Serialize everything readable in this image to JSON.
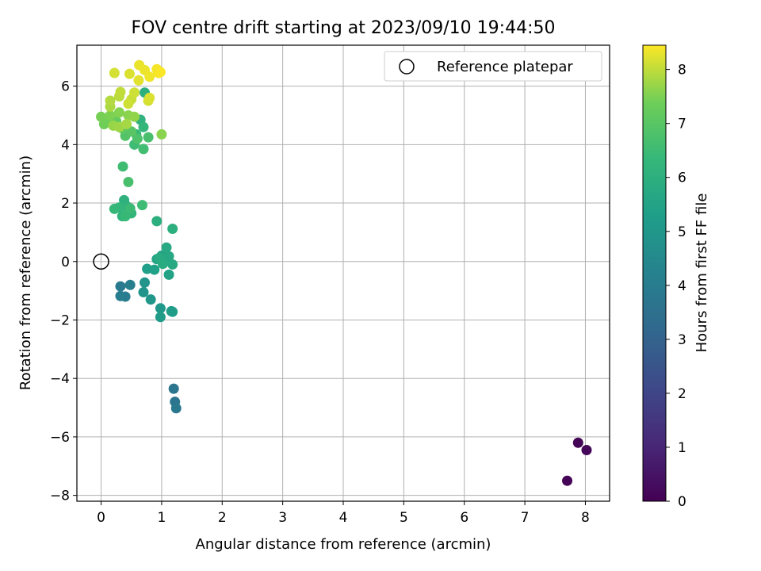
{
  "chart_data": {
    "type": "scatter",
    "title": "FOV centre drift starting at 2023/09/10 19:44:50",
    "xlabel": "Angular distance from reference (arcmin)",
    "ylabel": "Rotation from reference (arcmin)",
    "xlim": [
      -0.4,
      8.4
    ],
    "ylim": [
      -8.2,
      7.4
    ],
    "xticks": [
      "0",
      "1",
      "2",
      "3",
      "4",
      "5",
      "6",
      "7",
      "8"
    ],
    "yticks": [
      "−8",
      "−6",
      "−4",
      "−2",
      "0",
      "2",
      "4",
      "6"
    ],
    "grid": true,
    "legend": {
      "placement": "top-right",
      "entries": [
        "Reference platepar"
      ]
    },
    "colorbar": {
      "label": "Hours from first FF file",
      "range": [
        0,
        8.45
      ],
      "ticks": [
        "0",
        "1",
        "2",
        "3",
        "4",
        "5",
        "6",
        "7",
        "8"
      ],
      "colormap": "viridis"
    },
    "reference": {
      "x": 0,
      "y": 0
    },
    "points": [
      [
        7.7,
        -7.5,
        0.05
      ],
      [
        7.88,
        -6.2,
        0.1
      ],
      [
        8.02,
        -6.45,
        0.15
      ],
      [
        1.2,
        -4.35,
        3.7
      ],
      [
        1.22,
        -4.8,
        3.75
      ],
      [
        1.24,
        -5.02,
        3.8
      ],
      [
        0.32,
        -0.85,
        3.9
      ],
      [
        0.4,
        -1.2,
        4.0
      ],
      [
        0.32,
        -1.18,
        4.05
      ],
      [
        0.48,
        -0.8,
        4.1
      ],
      [
        0.72,
        -0.72,
        4.9
      ],
      [
        0.7,
        -1.05,
        4.95
      ],
      [
        0.82,
        -1.3,
        5.0
      ],
      [
        0.98,
        -1.6,
        5.1
      ],
      [
        0.98,
        -1.9,
        5.2
      ],
      [
        1.18,
        -1.72,
        5.3
      ],
      [
        1.16,
        -1.7,
        5.25
      ],
      [
        0.76,
        -0.25,
        5.35
      ],
      [
        0.88,
        -0.28,
        5.4
      ],
      [
        1.12,
        -0.45,
        5.45
      ],
      [
        0.92,
        0.08,
        5.5
      ],
      [
        1.0,
        0.2,
        5.55
      ],
      [
        1.05,
        0.0,
        5.6
      ],
      [
        1.12,
        0.18,
        5.65
      ],
      [
        1.08,
        0.48,
        5.7
      ],
      [
        1.18,
        -0.1,
        5.75
      ],
      [
        0.96,
        0.12,
        5.8
      ],
      [
        1.02,
        -0.08,
        5.85
      ],
      [
        0.92,
        1.38,
        5.95
      ],
      [
        1.18,
        1.12,
        6.0
      ],
      [
        0.38,
        2.1,
        6.05
      ],
      [
        0.42,
        1.9,
        6.1
      ],
      [
        0.35,
        1.55,
        6.15
      ],
      [
        0.45,
        1.7,
        6.2
      ],
      [
        0.5,
        1.65,
        6.25
      ],
      [
        0.3,
        1.85,
        6.3
      ],
      [
        0.22,
        1.8,
        6.35
      ],
      [
        0.4,
        1.55,
        6.4
      ],
      [
        0.48,
        1.82,
        6.45
      ],
      [
        0.68,
        1.93,
        6.5
      ],
      [
        0.36,
        3.25,
        6.55
      ],
      [
        0.45,
        2.72,
        6.7
      ],
      [
        0.72,
        5.78,
        6.0
      ],
      [
        0.65,
        4.85,
        6.1
      ],
      [
        0.7,
        4.6,
        6.3
      ],
      [
        0.58,
        4.35,
        6.4
      ],
      [
        0.55,
        4.0,
        6.5
      ],
      [
        0.7,
        3.85,
        6.6
      ],
      [
        0.78,
        4.25,
        6.7
      ],
      [
        0.6,
        4.2,
        6.8
      ],
      [
        0.4,
        4.3,
        6.9
      ],
      [
        0.5,
        4.45,
        7.0
      ],
      [
        0.35,
        4.55,
        7.1
      ],
      [
        0.25,
        4.8,
        7.2
      ],
      [
        0.1,
        4.9,
        7.3
      ],
      [
        0.05,
        4.7,
        7.4
      ],
      [
        0.0,
        4.95,
        7.45
      ],
      [
        0.15,
        5.0,
        7.5
      ],
      [
        0.3,
        5.1,
        7.55
      ],
      [
        0.45,
        5.0,
        7.6
      ],
      [
        0.55,
        4.95,
        7.65
      ],
      [
        0.2,
        4.65,
        7.7
      ],
      [
        0.3,
        4.6,
        7.75
      ],
      [
        0.42,
        4.7,
        7.8
      ],
      [
        0.15,
        5.3,
        7.85
      ],
      [
        0.15,
        5.5,
        7.9
      ],
      [
        0.3,
        5.65,
        7.95
      ],
      [
        0.32,
        5.8,
        8.0
      ],
      [
        0.5,
        5.55,
        8.05
      ],
      [
        0.45,
        5.4,
        8.1
      ],
      [
        0.55,
        5.78,
        8.1
      ],
      [
        0.78,
        5.5,
        8.15
      ],
      [
        0.8,
        5.6,
        8.2
      ],
      [
        1.0,
        4.35,
        7.6
      ],
      [
        0.22,
        6.45,
        8.15
      ],
      [
        0.47,
        6.42,
        8.2
      ],
      [
        0.62,
        6.2,
        8.25
      ],
      [
        0.63,
        6.72,
        8.3
      ],
      [
        0.72,
        6.55,
        8.32
      ],
      [
        0.8,
        6.32,
        8.35
      ],
      [
        0.92,
        6.58,
        8.38
      ],
      [
        0.95,
        6.45,
        8.4
      ],
      [
        0.98,
        6.48,
        8.42
      ]
    ]
  }
}
